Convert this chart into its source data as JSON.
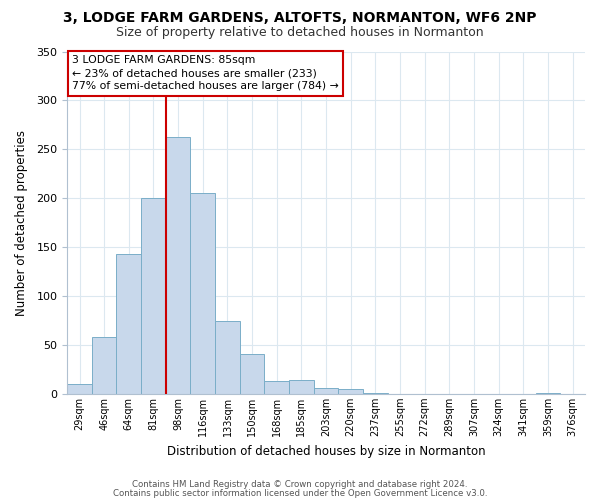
{
  "title": "3, LODGE FARM GARDENS, ALTOFTS, NORMANTON, WF6 2NP",
  "subtitle": "Size of property relative to detached houses in Normanton",
  "xlabel": "Distribution of detached houses by size in Normanton",
  "ylabel": "Number of detached properties",
  "bar_labels": [
    "29sqm",
    "46sqm",
    "64sqm",
    "81sqm",
    "98sqm",
    "116sqm",
    "133sqm",
    "150sqm",
    "168sqm",
    "185sqm",
    "203sqm",
    "220sqm",
    "237sqm",
    "255sqm",
    "272sqm",
    "289sqm",
    "307sqm",
    "324sqm",
    "341sqm",
    "359sqm",
    "376sqm"
  ],
  "bar_values": [
    10,
    58,
    143,
    200,
    263,
    205,
    75,
    41,
    13,
    14,
    6,
    5,
    1,
    0,
    0,
    0,
    0,
    0,
    0,
    1,
    0
  ],
  "bar_color": "#c8d8eb",
  "bar_edge_color": "#7aaec8",
  "vline_color": "#cc0000",
  "vline_index": 4,
  "ylim": [
    0,
    350
  ],
  "yticks": [
    0,
    50,
    100,
    150,
    200,
    250,
    300,
    350
  ],
  "annotation_title": "3 LODGE FARM GARDENS: 85sqm",
  "annotation_line1": "← 23% of detached houses are smaller (233)",
  "annotation_line2": "77% of semi-detached houses are larger (784) →",
  "annotation_box_color": "#ffffff",
  "annotation_box_edge": "#cc0000",
  "footer1": "Contains HM Land Registry data © Crown copyright and database right 2024.",
  "footer2": "Contains public sector information licensed under the Open Government Licence v3.0.",
  "bg_color": "#ffffff",
  "grid_color": "#dce8f0"
}
